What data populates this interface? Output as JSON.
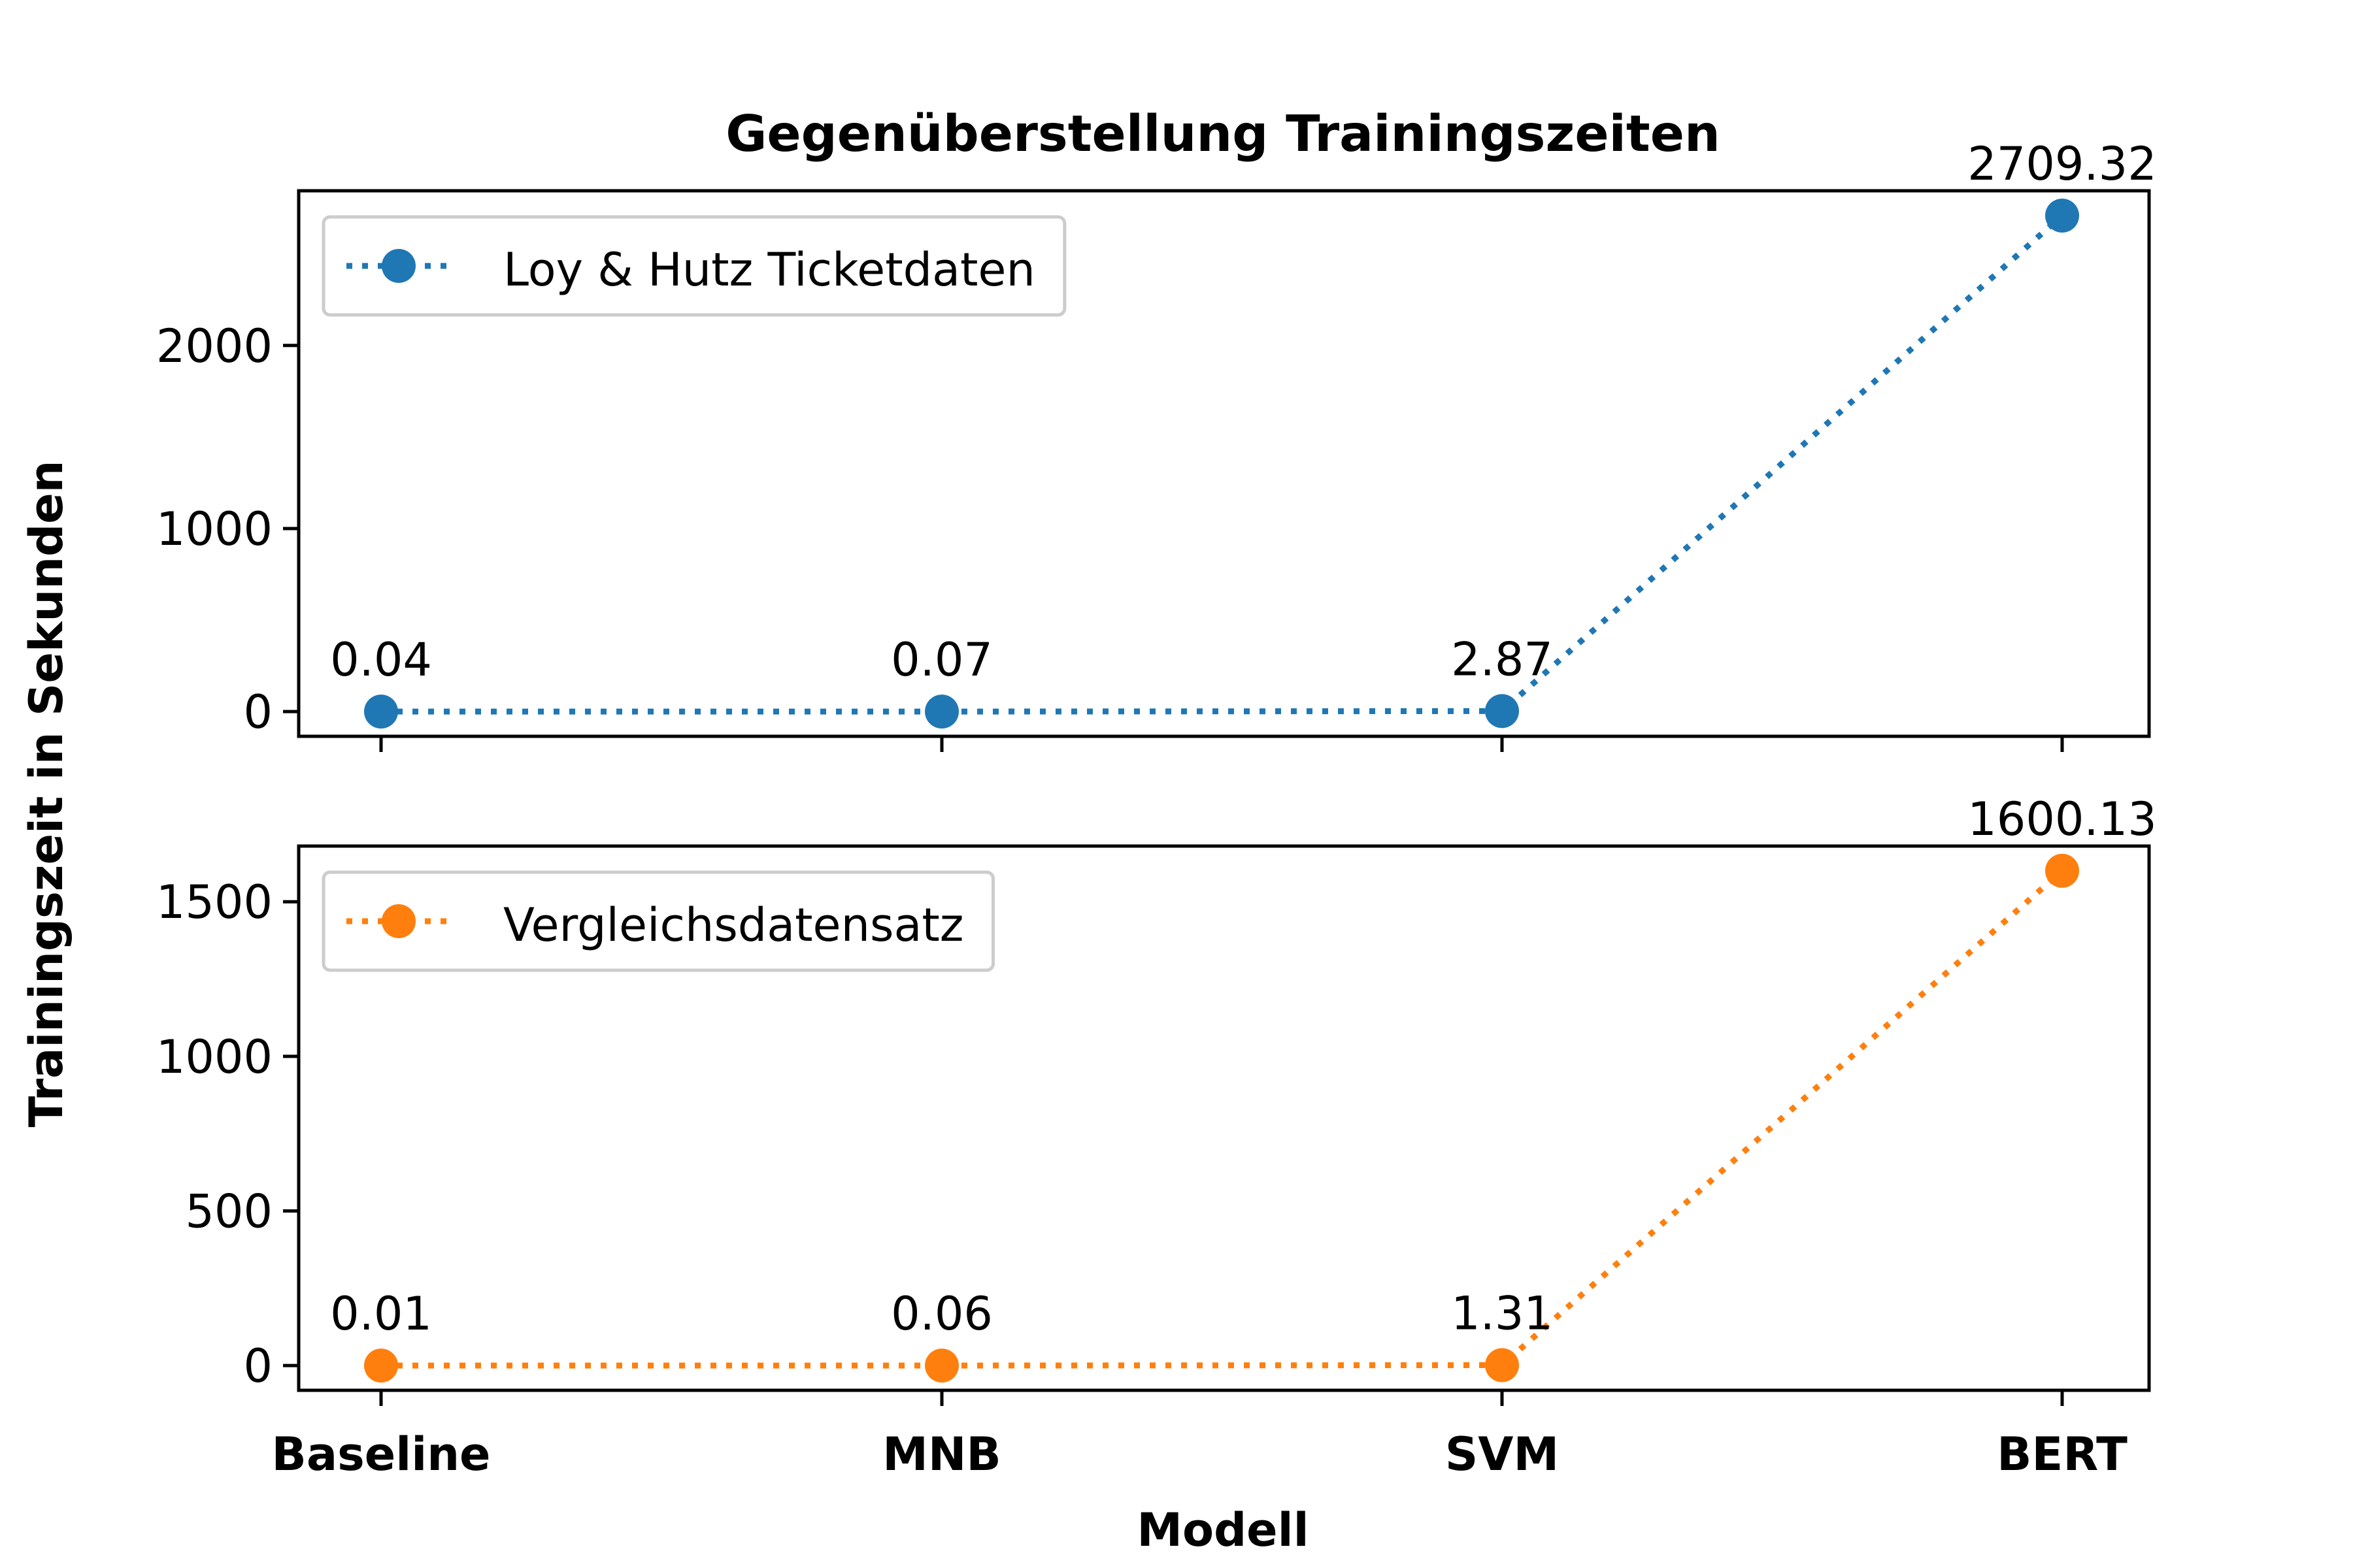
{
  "chart_data": {
    "type": "line",
    "title": "Gegenüberstellung Trainingszeiten",
    "xlabel": "Modell",
    "ylabel": "Trainingszeit in Sekunden",
    "categories": [
      "Baseline",
      "MNB",
      "SVM",
      "BERT"
    ],
    "grid": false,
    "legend_position": "top-left",
    "panels": [
      {
        "series": [
          {
            "name": "Loy & Hutz Ticketdaten",
            "color": "#1f77b4",
            "values": [
              0.04,
              0.07,
              2.87,
              2709.32
            ],
            "labels": [
              "0.04",
              "0.07",
              "2.87",
              "2709.32"
            ]
          }
        ],
        "ylim": [
          -135,
          2845
        ],
        "yticks": [
          0,
          1000,
          2000
        ]
      },
      {
        "series": [
          {
            "name": "Vergleichsdatensatz",
            "color": "#ff7f0e",
            "values": [
              0.01,
              0.06,
              1.31,
              1600.13
            ],
            "labels": [
              "0.01",
              "0.06",
              "1.31",
              "1600.13"
            ]
          }
        ],
        "ylim": [
          -80,
          1680
        ],
        "yticks": [
          0,
          500,
          1000,
          1500
        ]
      }
    ]
  }
}
